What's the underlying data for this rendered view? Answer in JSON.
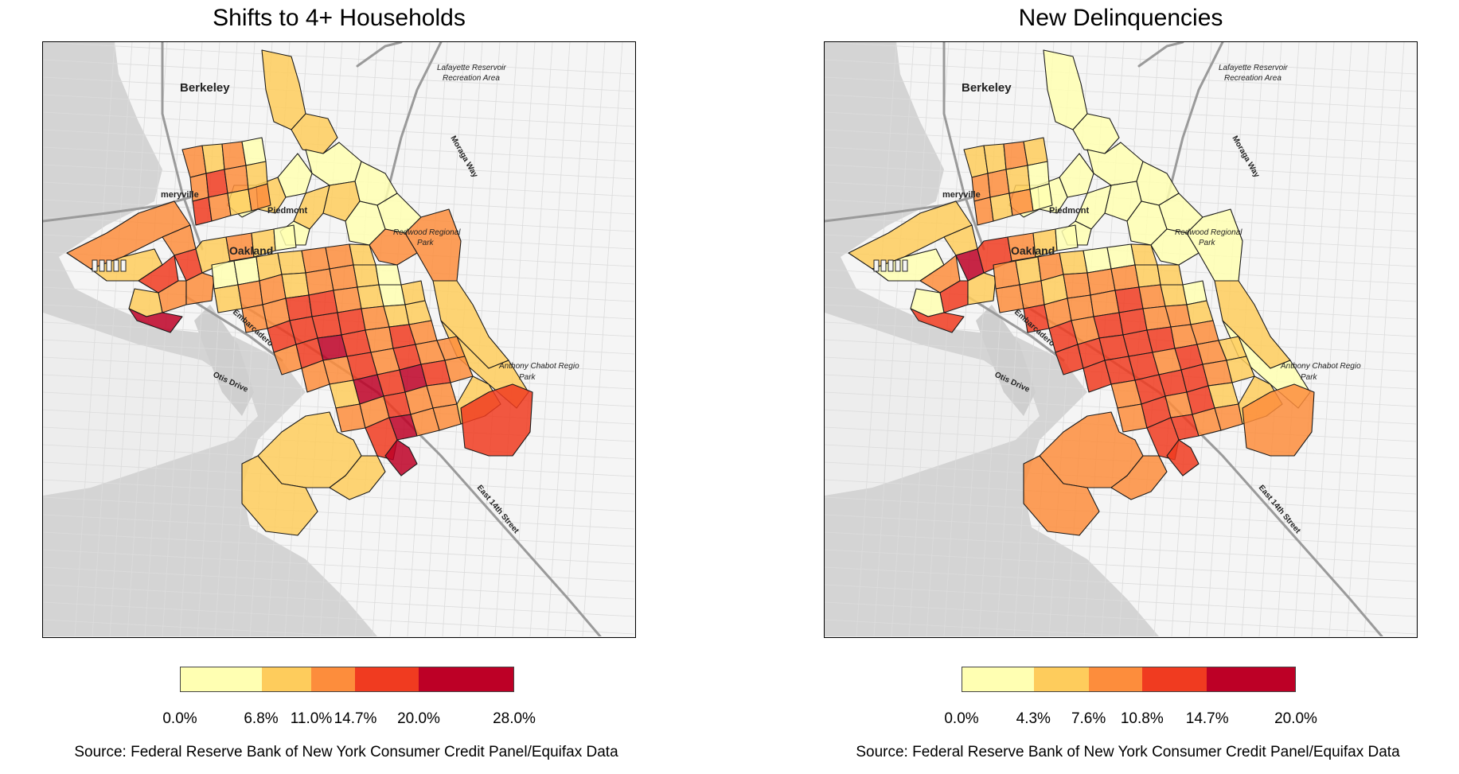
{
  "maps": [
    {
      "title": "Shifts to 4+ Households",
      "legend": {
        "colors": [
          "#ffffb2",
          "#fecc5c",
          "#fd8d3c",
          "#f03b20",
          "#bd0026"
        ],
        "ticks": [
          "0.0%",
          "6.8%",
          "11.0%",
          "14.7%",
          "20.0%",
          "28.0%"
        ],
        "tick_values": [
          0.0,
          6.8,
          11.0,
          14.7,
          20.0,
          28.0
        ]
      },
      "source": "Source: Federal Reserve Bank of New York Consumer Credit Panel/Equifax Data"
    },
    {
      "title": "New Delinquencies",
      "legend": {
        "colors": [
          "#ffffb2",
          "#fecc5c",
          "#fd8d3c",
          "#f03b20",
          "#bd0026"
        ],
        "ticks": [
          "0.0%",
          "4.3%",
          "7.6%",
          "10.8%",
          "14.7%",
          "20.0%"
        ],
        "tick_values": [
          0.0,
          4.3,
          7.6,
          10.8,
          14.7,
          20.0
        ]
      },
      "source": "Source: Federal Reserve Bank of New York Consumer Credit Panel/Equifax Data"
    }
  ],
  "basemap_labels": {
    "berkeley": "Berkeley",
    "emeryville": "meryville",
    "piedmont": "Piedmont",
    "oakland": "Oakland",
    "lafayette": "Lafayette Reservoir",
    "lafayette2": "Recreation Area",
    "moraga": "Moraga Way",
    "redwood": "Redwood Regional",
    "redwood2": "Park",
    "embarcadero": "Embarcadero",
    "otis": "Otis Drive",
    "cabot": "Anthony Chabot Regio",
    "cabot2": "Park",
    "east14": "East 14th Street"
  }
}
